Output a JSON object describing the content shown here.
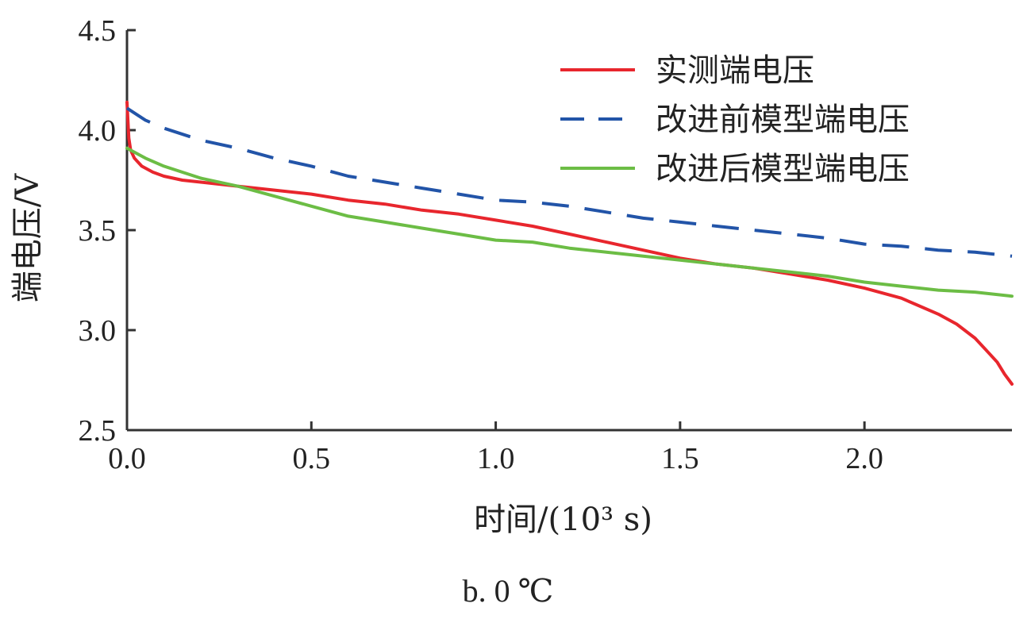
{
  "chart_data": {
    "type": "line",
    "xlabel": "时间/(10³ s)",
    "ylabel": "端电压/V",
    "caption": "b. 0 ℃",
    "xlim": [
      0,
      2.4
    ],
    "ylim": [
      2.5,
      4.5
    ],
    "x_ticks": [
      0.0,
      0.5,
      1.0,
      1.5,
      2.0
    ],
    "x_tick_labels": [
      "0.0",
      "0.5",
      "1.0",
      "1.5",
      "2.0"
    ],
    "y_ticks": [
      2.5,
      3.0,
      3.5,
      4.0,
      4.5
    ],
    "y_tick_labels": [
      "2.5",
      "3.0",
      "3.5",
      "4.0",
      "4.5"
    ],
    "grid": false,
    "legend_position": "top-right",
    "series": [
      {
        "name": "实测端电压",
        "color": "#e8262d",
        "dash": "solid",
        "x": [
          0.0,
          0.001,
          0.005,
          0.01,
          0.02,
          0.04,
          0.07,
          0.1,
          0.15,
          0.2,
          0.3,
          0.4,
          0.5,
          0.6,
          0.7,
          0.8,
          0.9,
          1.0,
          1.1,
          1.2,
          1.3,
          1.4,
          1.5,
          1.6,
          1.7,
          1.8,
          1.9,
          2.0,
          2.1,
          2.2,
          2.25,
          2.3,
          2.33,
          2.36,
          2.38,
          2.4
        ],
        "y": [
          4.14,
          4.1,
          3.96,
          3.9,
          3.86,
          3.82,
          3.79,
          3.77,
          3.75,
          3.74,
          3.72,
          3.7,
          3.68,
          3.65,
          3.63,
          3.6,
          3.58,
          3.55,
          3.52,
          3.48,
          3.44,
          3.4,
          3.36,
          3.33,
          3.31,
          3.28,
          3.25,
          3.21,
          3.16,
          3.08,
          3.03,
          2.96,
          2.9,
          2.84,
          2.78,
          2.73
        ]
      },
      {
        "name": "改进前模型端电压",
        "color": "#2254a8",
        "dash": "dashed",
        "x": [
          0.0,
          0.05,
          0.1,
          0.2,
          0.3,
          0.4,
          0.5,
          0.6,
          0.7,
          0.8,
          0.9,
          1.0,
          1.1,
          1.2,
          1.3,
          1.4,
          1.5,
          1.6,
          1.7,
          1.8,
          1.9,
          2.0,
          2.1,
          2.2,
          2.3,
          2.4
        ],
        "y": [
          4.11,
          4.05,
          4.01,
          3.95,
          3.91,
          3.86,
          3.82,
          3.77,
          3.74,
          3.71,
          3.68,
          3.65,
          3.64,
          3.62,
          3.59,
          3.56,
          3.54,
          3.52,
          3.5,
          3.48,
          3.46,
          3.43,
          3.42,
          3.4,
          3.39,
          3.37
        ]
      },
      {
        "name": "改进后模型端电压",
        "color": "#6cbd45",
        "dash": "solid",
        "x": [
          0.0,
          0.05,
          0.1,
          0.2,
          0.3,
          0.4,
          0.5,
          0.6,
          0.7,
          0.8,
          0.9,
          1.0,
          1.1,
          1.2,
          1.3,
          1.4,
          1.5,
          1.6,
          1.7,
          1.8,
          1.9,
          2.0,
          2.1,
          2.2,
          2.3,
          2.4
        ],
        "y": [
          3.91,
          3.86,
          3.82,
          3.76,
          3.72,
          3.67,
          3.62,
          3.57,
          3.54,
          3.51,
          3.48,
          3.45,
          3.44,
          3.41,
          3.39,
          3.37,
          3.35,
          3.33,
          3.31,
          3.29,
          3.27,
          3.24,
          3.22,
          3.2,
          3.19,
          3.17
        ]
      }
    ]
  }
}
